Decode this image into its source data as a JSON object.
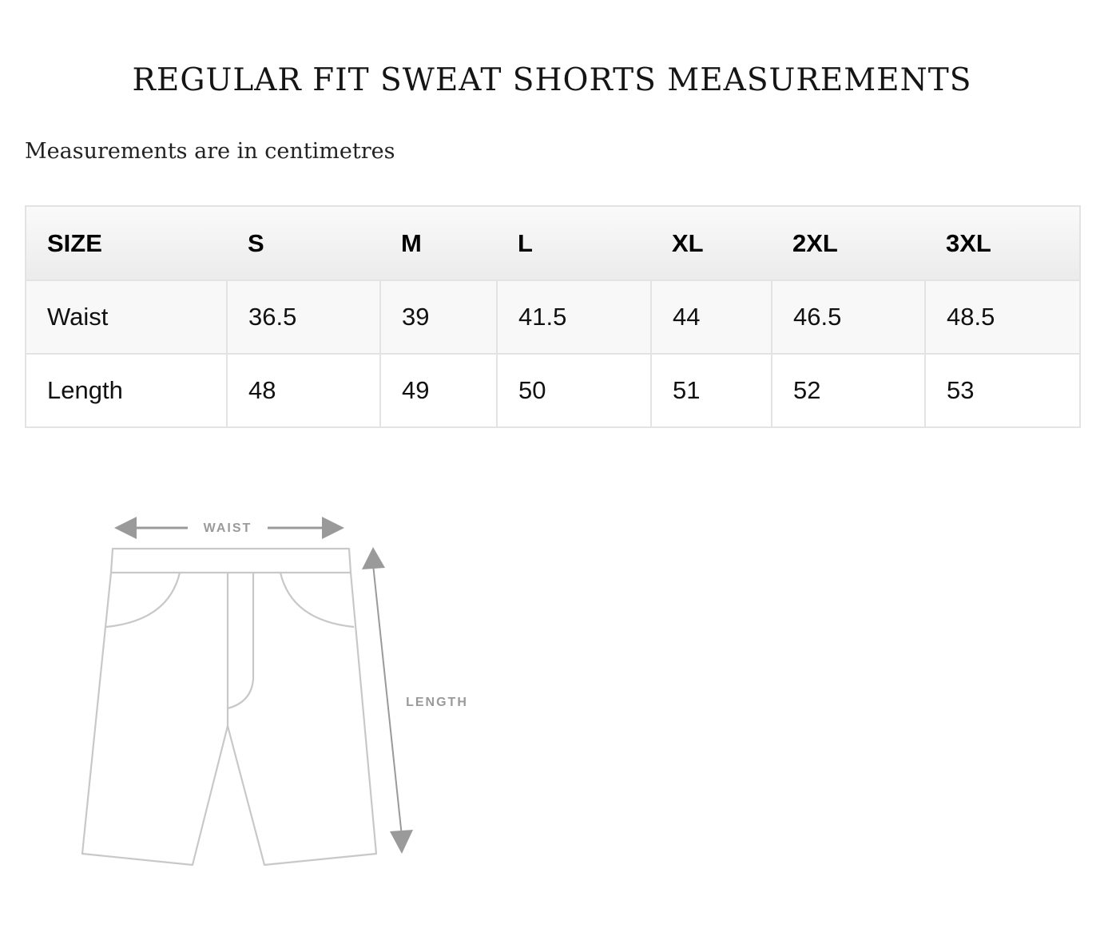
{
  "page": {
    "title": "REGULAR FIT SWEAT SHORTS MEASUREMENTS",
    "subtitle": "Measurements are in centimetres"
  },
  "table": {
    "header": [
      "SIZE",
      "S",
      "M",
      "L",
      "XL",
      "2XL",
      "3XL"
    ],
    "rows": [
      [
        "Waist",
        "36.5",
        "39",
        "41.5",
        "44",
        "46.5",
        "48.5"
      ],
      [
        "Length",
        "48",
        "49",
        "50",
        "51",
        "52",
        "53"
      ]
    ]
  },
  "diagram": {
    "waist_label": "WAIST",
    "length_label": "LENGTH",
    "line_color": "#c8c8c8",
    "arrow_color": "#9a9a9a"
  }
}
